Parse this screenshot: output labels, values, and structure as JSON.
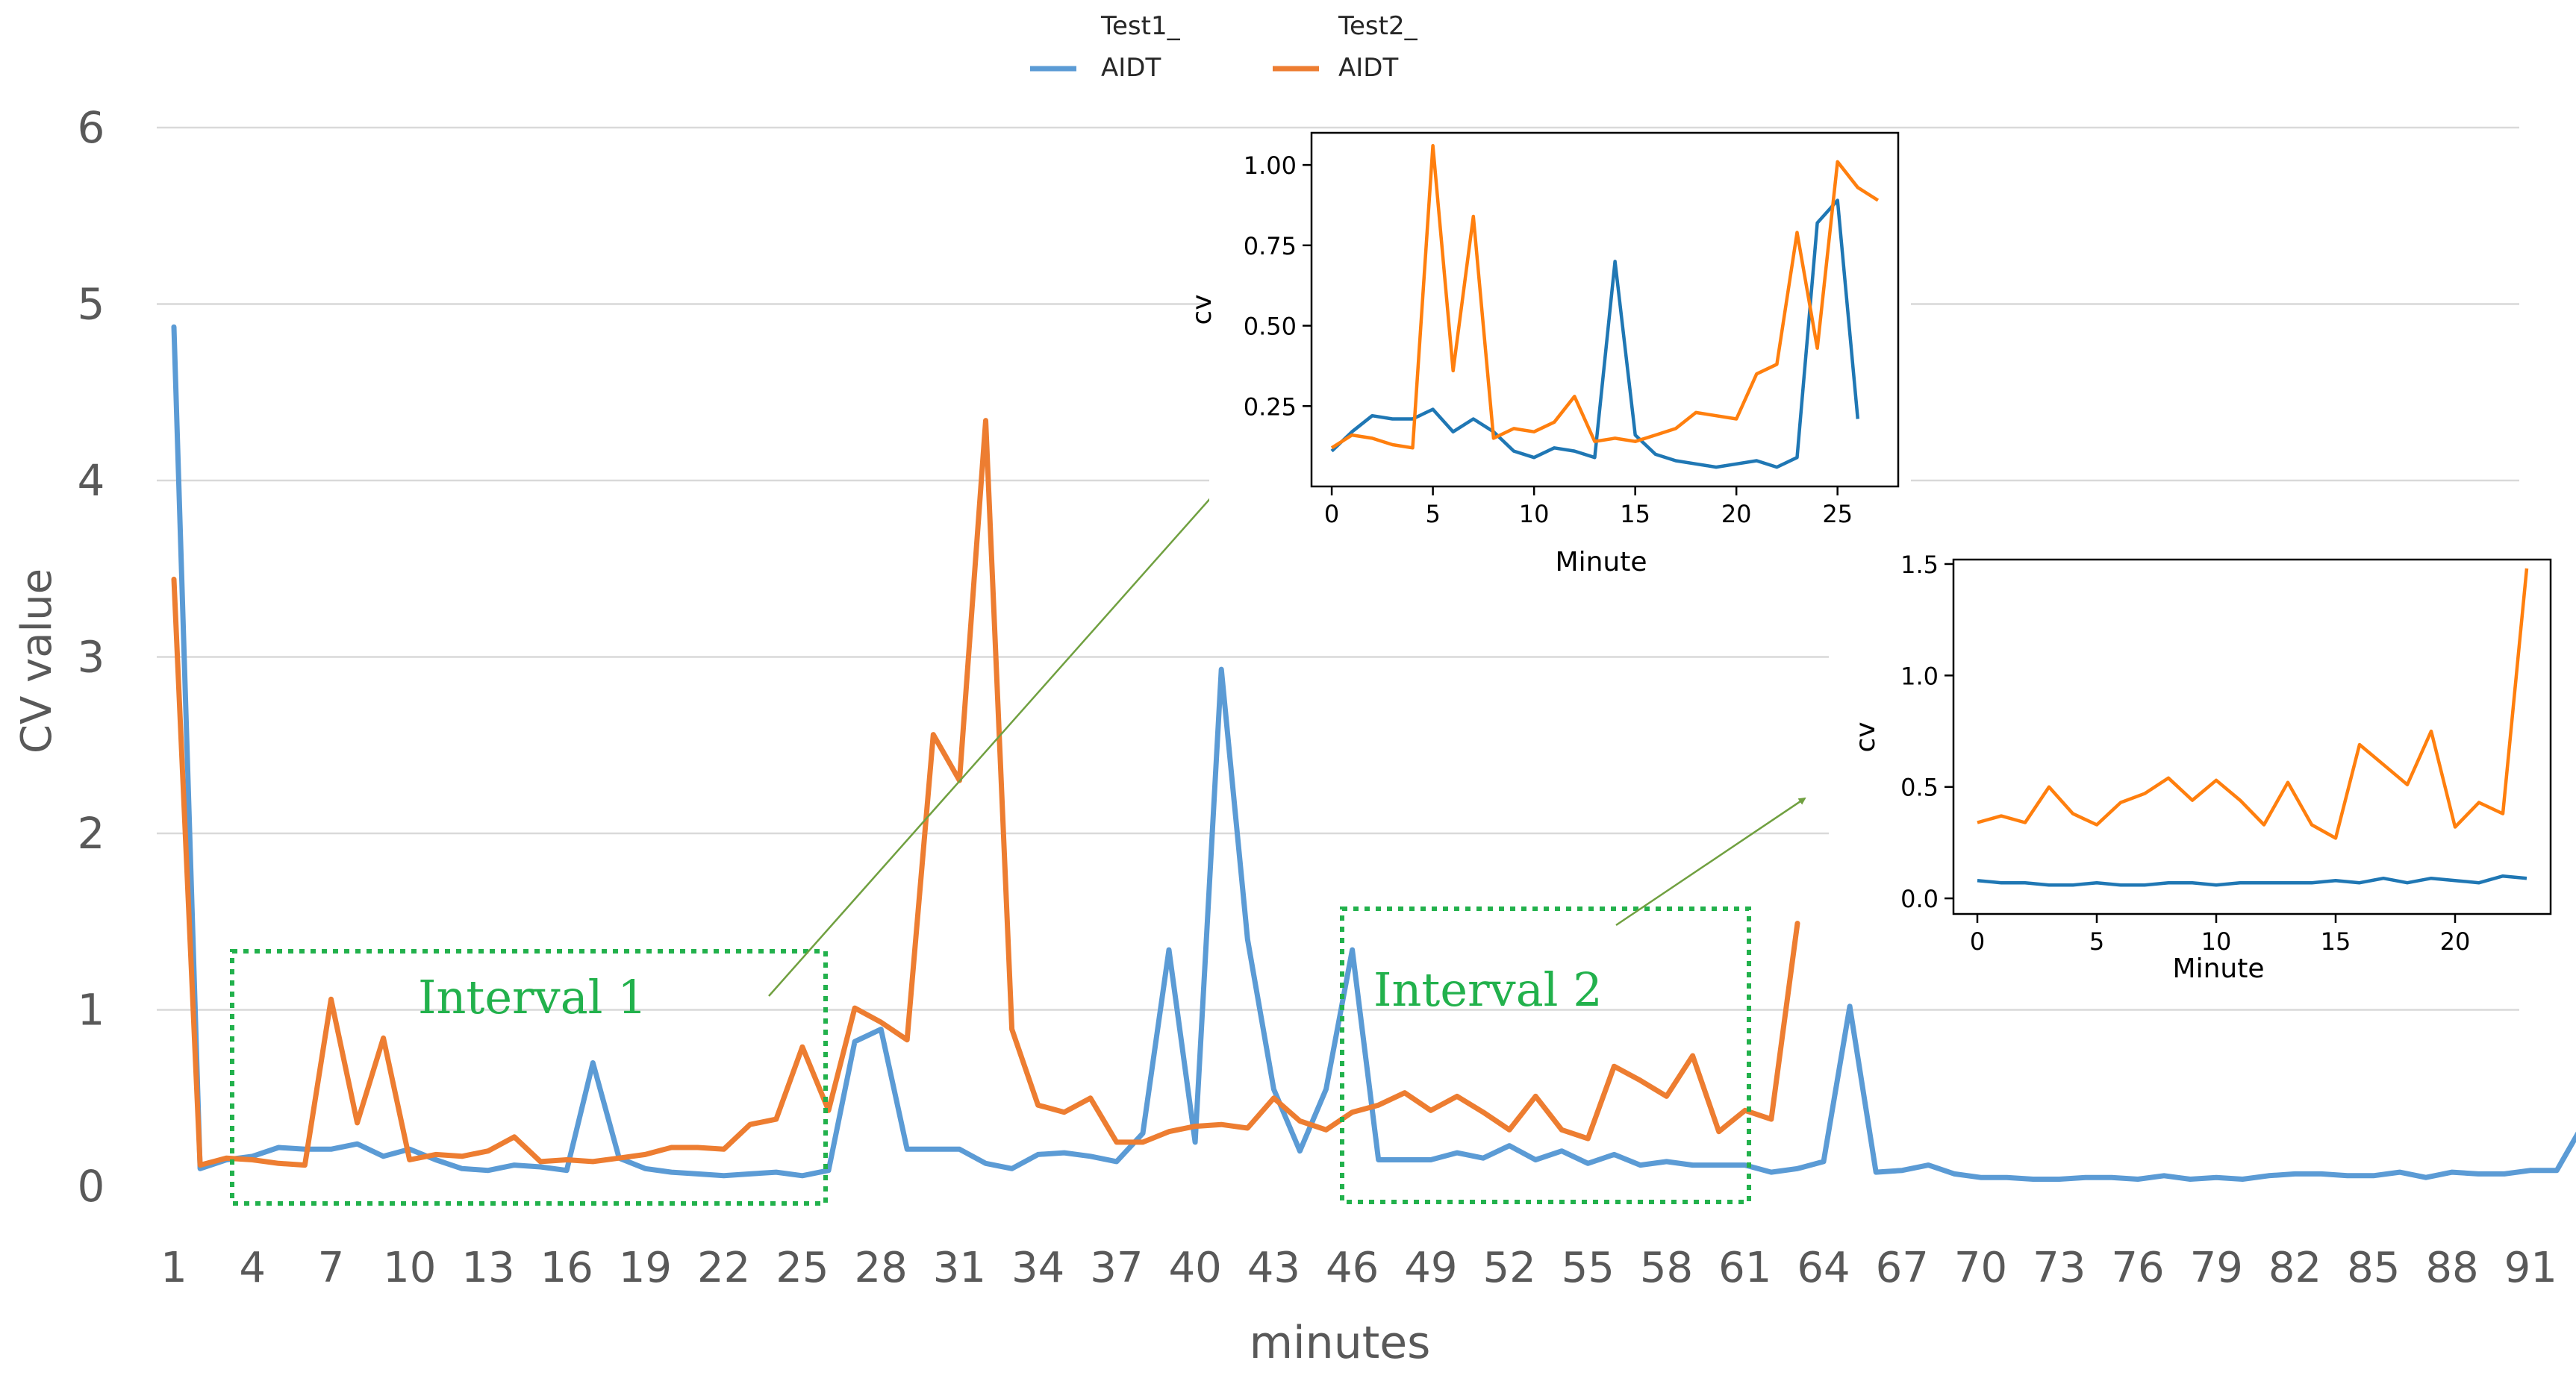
{
  "colors": {
    "series1": "#5b9bd5",
    "series2": "#ed7d31",
    "grid": "#d9d9d9",
    "text": "#595959",
    "interval": "#22b14c",
    "arrow": "#70a040",
    "inset_series1": "#1f77b4",
    "inset_series2": "#ff7f0e"
  },
  "chart_data": [
    {
      "type": "line",
      "title": "",
      "xlabel": "minutes",
      "ylabel": "CV value",
      "ylim": [
        0,
        6
      ],
      "yticks": [
        "0",
        "1",
        "2",
        "3",
        "4",
        "5",
        "6"
      ],
      "xticks": [
        "1",
        "4",
        "7",
        "10",
        "13",
        "16",
        "19",
        "22",
        "25",
        "28",
        "31",
        "34",
        "37",
        "40",
        "43",
        "46",
        "49",
        "52",
        "55",
        "58",
        "61",
        "64",
        "67",
        "70",
        "73",
        "76",
        "79",
        "82",
        "85",
        "88",
        "91"
      ],
      "legend": {
        "position": "top-center",
        "series1_line1": "Test1_",
        "series1_line2": "AIDT",
        "series2_line1": "Test2_",
        "series2_line2": "AIDT"
      },
      "annotations": {
        "interval1": "Interval 1",
        "interval2": "Interval 2",
        "interval1_range": [
          3,
          27
        ],
        "interval2_range": [
          47,
          63
        ]
      },
      "series": [
        {
          "name": "Test1_ AIDT",
          "start_x": 1,
          "values": [
            4.87,
            0.1,
            0.15,
            0.17,
            0.22,
            0.21,
            0.21,
            0.24,
            0.17,
            0.21,
            0.15,
            0.1,
            0.09,
            0.12,
            0.11,
            0.09,
            0.7,
            0.16,
            0.1,
            0.08,
            0.07,
            0.06,
            0.07,
            0.08,
            0.06,
            0.09,
            0.82,
            0.89,
            0.21,
            0.21,
            0.21,
            0.13,
            0.1,
            0.18,
            0.19,
            0.17,
            0.14,
            0.3,
            1.34,
            0.25,
            2.93,
            1.4,
            0.55,
            0.2,
            0.55,
            1.34,
            0.15,
            0.15,
            0.15,
            0.19,
            0.16,
            0.23,
            0.15,
            0.2,
            0.13,
            0.18,
            0.12,
            0.14,
            0.12,
            0.12,
            0.12,
            0.08,
            0.1,
            0.14,
            1.02,
            0.08,
            0.09,
            0.12,
            0.07,
            0.05,
            0.05,
            0.04,
            0.04,
            0.05,
            0.05,
            0.04,
            0.06,
            0.04,
            0.05,
            0.04,
            0.06,
            0.07,
            0.07,
            0.06,
            0.06,
            0.08,
            0.05,
            0.08,
            0.07,
            0.07,
            0.09,
            0.09,
            0.35
          ]
        },
        {
          "name": "Test2_ AIDT",
          "start_x": 1,
          "values": [
            3.44,
            0.12,
            0.16,
            0.15,
            0.13,
            0.12,
            1.06,
            0.36,
            0.84,
            0.15,
            0.18,
            0.17,
            0.2,
            0.28,
            0.14,
            0.15,
            0.14,
            0.16,
            0.18,
            0.22,
            0.22,
            0.21,
            0.35,
            0.38,
            0.79,
            0.43,
            1.01,
            0.93,
            0.83,
            2.56,
            2.3,
            4.34,
            0.89,
            0.46,
            0.42,
            0.5,
            0.25,
            0.25,
            0.31,
            0.34,
            0.35,
            0.33,
            0.5,
            0.37,
            0.32,
            0.42,
            0.46,
            0.53,
            0.43,
            0.51,
            0.42,
            0.32,
            0.51,
            0.32,
            0.27,
            0.68,
            0.6,
            0.51,
            0.74,
            0.31,
            0.43,
            0.38,
            1.49
          ]
        }
      ]
    },
    {
      "type": "line",
      "title": "",
      "xlabel": "Minute",
      "ylabel": "cv",
      "xlim": [
        -1,
        28
      ],
      "ylim": [
        0,
        1.1
      ],
      "yticks": [
        "0.25",
        "0.50",
        "0.75",
        "1.00"
      ],
      "xticks": [
        "0",
        "5",
        "10",
        "15",
        "20",
        "25"
      ],
      "series": [
        {
          "name": "Test1_ AIDT",
          "values": [
            0.11,
            0.17,
            0.22,
            0.21,
            0.21,
            0.24,
            0.17,
            0.21,
            0.17,
            0.11,
            0.09,
            0.12,
            0.11,
            0.09,
            0.7,
            0.16,
            0.1,
            0.08,
            0.07,
            0.06,
            0.07,
            0.08,
            0.06,
            0.09,
            0.82,
            0.89,
            0.21
          ]
        },
        {
          "name": "Test2_ AIDT",
          "values": [
            0.12,
            0.16,
            0.15,
            0.13,
            0.12,
            1.06,
            0.36,
            0.84,
            0.15,
            0.18,
            0.17,
            0.2,
            0.28,
            0.14,
            0.15,
            0.14,
            0.16,
            0.18,
            0.23,
            0.22,
            0.21,
            0.35,
            0.38,
            0.79,
            0.43,
            1.01,
            0.93,
            0.89
          ]
        }
      ]
    },
    {
      "type": "line",
      "title": "",
      "xlabel": "Minute",
      "ylabel": "cv",
      "xlim": [
        -1,
        24
      ],
      "ylim": [
        -0.07,
        1.52
      ],
      "yticks": [
        "0.0",
        "0.5",
        "1.0",
        "1.5"
      ],
      "xticks": [
        "0",
        "5",
        "10",
        "15",
        "20"
      ],
      "series": [
        {
          "name": "Test1_ AIDT",
          "values": [
            0.08,
            0.07,
            0.07,
            0.06,
            0.06,
            0.07,
            0.06,
            0.06,
            0.07,
            0.07,
            0.06,
            0.07,
            0.07,
            0.07,
            0.07,
            0.08,
            0.07,
            0.09,
            0.07,
            0.09,
            0.08,
            0.07,
            0.1,
            0.09
          ]
        },
        {
          "name": "Test2_ AIDT",
          "values": [
            0.34,
            0.37,
            0.34,
            0.5,
            0.38,
            0.33,
            0.43,
            0.47,
            0.54,
            0.44,
            0.53,
            0.44,
            0.33,
            0.52,
            0.33,
            0.27,
            0.69,
            0.6,
            0.51,
            0.75,
            0.32,
            0.43,
            0.38,
            1.48
          ]
        }
      ]
    }
  ]
}
